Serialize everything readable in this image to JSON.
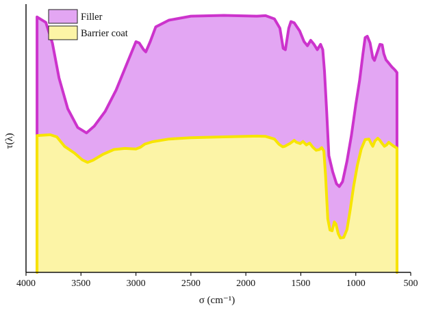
{
  "chart_data": {
    "type": "area",
    "xlim": [
      4000,
      500
    ],
    "x_reversed": true,
    "xticks": [
      "4000",
      "3500",
      "3000",
      "2500",
      "2000",
      "1500",
      "1000",
      "500"
    ],
    "xlabel": "σ (cm⁻¹)",
    "ylabel": "τ(λ)",
    "ylim": [
      0,
      1
    ],
    "y_ticks_shown": false,
    "grid": false,
    "legend_position": "top-left",
    "series": [
      {
        "name": "Filler",
        "stroke": "#cc33cc",
        "fill": "#e3a6f3",
        "points": [
          [
            3900,
            0.952
          ],
          [
            3820,
            0.932
          ],
          [
            3760,
            0.855
          ],
          [
            3700,
            0.725
          ],
          [
            3620,
            0.61
          ],
          [
            3530,
            0.54
          ],
          [
            3450,
            0.52
          ],
          [
            3380,
            0.545
          ],
          [
            3280,
            0.6
          ],
          [
            3180,
            0.68
          ],
          [
            3080,
            0.78
          ],
          [
            3000,
            0.86
          ],
          [
            2970,
            0.855
          ],
          [
            2930,
            0.83
          ],
          [
            2910,
            0.822
          ],
          [
            2870,
            0.86
          ],
          [
            2820,
            0.915
          ],
          [
            2700,
            0.94
          ],
          [
            2500,
            0.955
          ],
          [
            2200,
            0.958
          ],
          [
            1900,
            0.955
          ],
          [
            1820,
            0.957
          ],
          [
            1740,
            0.945
          ],
          [
            1690,
            0.91
          ],
          [
            1660,
            0.835
          ],
          [
            1640,
            0.83
          ],
          [
            1610,
            0.91
          ],
          [
            1590,
            0.935
          ],
          [
            1560,
            0.93
          ],
          [
            1510,
            0.9
          ],
          [
            1470,
            0.86
          ],
          [
            1440,
            0.845
          ],
          [
            1410,
            0.865
          ],
          [
            1380,
            0.85
          ],
          [
            1350,
            0.83
          ],
          [
            1320,
            0.85
          ],
          [
            1300,
            0.83
          ],
          [
            1285,
            0.75
          ],
          [
            1265,
            0.6
          ],
          [
            1245,
            0.435
          ],
          [
            1210,
            0.375
          ],
          [
            1175,
            0.33
          ],
          [
            1150,
            0.32
          ],
          [
            1120,
            0.338
          ],
          [
            1080,
            0.415
          ],
          [
            1040,
            0.51
          ],
          [
            1000,
            0.625
          ],
          [
            965,
            0.715
          ],
          [
            935,
            0.815
          ],
          [
            915,
            0.875
          ],
          [
            895,
            0.88
          ],
          [
            870,
            0.855
          ],
          [
            845,
            0.8
          ],
          [
            830,
            0.79
          ],
          [
            805,
            0.82
          ],
          [
            780,
            0.85
          ],
          [
            760,
            0.848
          ],
          [
            745,
            0.815
          ],
          [
            725,
            0.792
          ],
          [
            700,
            0.78
          ],
          [
            670,
            0.765
          ],
          [
            645,
            0.755
          ],
          [
            625,
            0.745
          ],
          [
            625,
            0.0
          ]
        ]
      },
      {
        "name": "Barrier coat",
        "stroke": "#f7e400",
        "fill": "#fcf4a6",
        "points": [
          [
            3900,
            0.51
          ],
          [
            3780,
            0.513
          ],
          [
            3720,
            0.505
          ],
          [
            3650,
            0.47
          ],
          [
            3560,
            0.445
          ],
          [
            3490,
            0.42
          ],
          [
            3440,
            0.41
          ],
          [
            3390,
            0.418
          ],
          [
            3300,
            0.44
          ],
          [
            3200,
            0.458
          ],
          [
            3100,
            0.462
          ],
          [
            3000,
            0.46
          ],
          [
            2960,
            0.466
          ],
          [
            2920,
            0.478
          ],
          [
            2850,
            0.487
          ],
          [
            2700,
            0.497
          ],
          [
            2500,
            0.502
          ],
          [
            2200,
            0.505
          ],
          [
            1900,
            0.508
          ],
          [
            1820,
            0.507
          ],
          [
            1740,
            0.497
          ],
          [
            1700,
            0.478
          ],
          [
            1665,
            0.468
          ],
          [
            1645,
            0.47
          ],
          [
            1600,
            0.48
          ],
          [
            1560,
            0.492
          ],
          [
            1540,
            0.485
          ],
          [
            1505,
            0.48
          ],
          [
            1480,
            0.488
          ],
          [
            1450,
            0.475
          ],
          [
            1420,
            0.482
          ],
          [
            1390,
            0.466
          ],
          [
            1360,
            0.455
          ],
          [
            1330,
            0.458
          ],
          [
            1310,
            0.465
          ],
          [
            1290,
            0.452
          ],
          [
            1275,
            0.36
          ],
          [
            1255,
            0.2
          ],
          [
            1235,
            0.158
          ],
          [
            1215,
            0.155
          ],
          [
            1195,
            0.188
          ],
          [
            1180,
            0.18
          ],
          [
            1160,
            0.145
          ],
          [
            1140,
            0.128
          ],
          [
            1110,
            0.13
          ],
          [
            1080,
            0.16
          ],
          [
            1050,
            0.235
          ],
          [
            1020,
            0.32
          ],
          [
            985,
            0.4
          ],
          [
            950,
            0.46
          ],
          [
            915,
            0.495
          ],
          [
            880,
            0.497
          ],
          [
            860,
            0.48
          ],
          [
            845,
            0.47
          ],
          [
            825,
            0.49
          ],
          [
            800,
            0.5
          ],
          [
            780,
            0.492
          ],
          [
            760,
            0.48
          ],
          [
            740,
            0.47
          ],
          [
            720,
            0.475
          ],
          [
            700,
            0.485
          ],
          [
            680,
            0.478
          ],
          [
            660,
            0.472
          ],
          [
            625,
            0.463
          ],
          [
            625,
            0.0
          ]
        ]
      }
    ]
  }
}
